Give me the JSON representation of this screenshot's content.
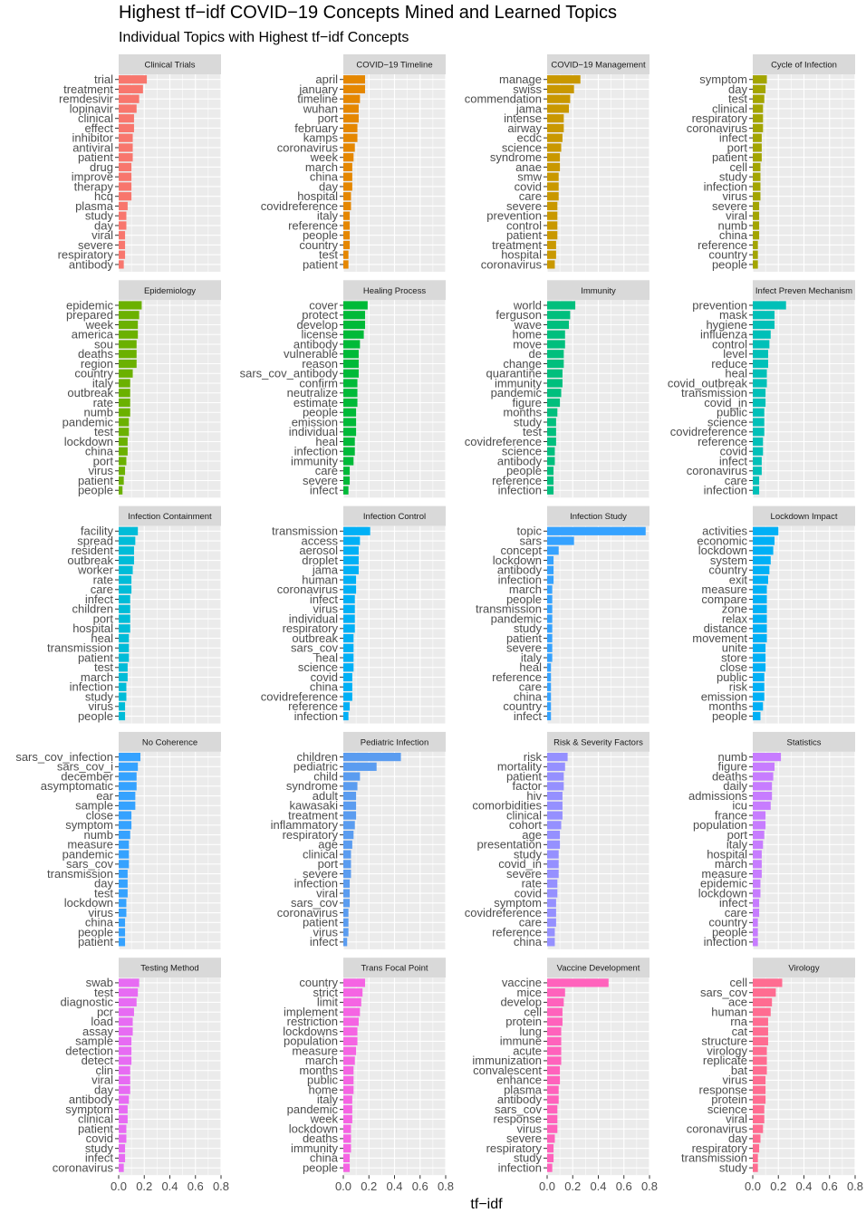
{
  "chart_data": {
    "type": "bar",
    "orientation": "horizontal",
    "title": "Highest tf−idf COVID−19 Concepts Mined and Learned Topics",
    "subtitle": "Individual Topics with Highest tf−idf Concepts",
    "xlabel": "tf−idf",
    "ylabel": "",
    "xlim": [
      0,
      0.8
    ],
    "x_ticks": [
      "0.0",
      "0.2",
      "0.4",
      "0.6",
      "0.8"
    ],
    "grid": true,
    "legend": "none",
    "panel_background": "#ebebeb",
    "strip_background": "#d9d9d9",
    "grid_color": "#ffffff",
    "panels": [
      {
        "name": "Clinical Trials",
        "color": "#F8766D",
        "terms": [
          "trial",
          "treatment",
          "remdesivir",
          "lopinavir",
          "clinical",
          "effect",
          "inhibitor",
          "antiviral",
          "patient",
          "drug",
          "improve",
          "therapy",
          "hcq",
          "plasma",
          "study",
          "day",
          "viral",
          "severe",
          "respiratory",
          "antibody"
        ],
        "values": [
          0.22,
          0.19,
          0.16,
          0.14,
          0.12,
          0.12,
          0.11,
          0.11,
          0.11,
          0.1,
          0.1,
          0.1,
          0.1,
          0.07,
          0.06,
          0.06,
          0.05,
          0.05,
          0.05,
          0.04
        ]
      },
      {
        "name": "COVID−19  Timeline",
        "color": "#E58700",
        "terms": [
          "april",
          "january",
          "timeline",
          "wuhan",
          "port",
          "february",
          "kamps",
          "coronavirus",
          "week",
          "march",
          "china",
          "day",
          "hospital",
          "covidreference",
          "italy",
          "reference",
          "people",
          "country",
          "test",
          "patient"
        ],
        "values": [
          0.17,
          0.17,
          0.13,
          0.12,
          0.12,
          0.11,
          0.11,
          0.09,
          0.08,
          0.07,
          0.07,
          0.07,
          0.06,
          0.06,
          0.05,
          0.05,
          0.05,
          0.05,
          0.04,
          0.04
        ]
      },
      {
        "name": "COVID−19 Management",
        "color": "#C99800",
        "terms": [
          "manage",
          "swiss",
          "commendation",
          "jama",
          "intense",
          "airway",
          "ecdc",
          "science",
          "syndrome",
          "anae",
          "smw",
          "covid",
          "care",
          "severe",
          "prevention",
          "control",
          "patient",
          "treatment",
          "hospital",
          "coronavirus"
        ],
        "values": [
          0.26,
          0.21,
          0.18,
          0.17,
          0.13,
          0.13,
          0.12,
          0.11,
          0.1,
          0.1,
          0.09,
          0.09,
          0.09,
          0.08,
          0.08,
          0.08,
          0.08,
          0.07,
          0.07,
          0.06
        ]
      },
      {
        "name": "Cycle of Infection",
        "color": "#A3A500",
        "terms": [
          "symptom",
          "day",
          "test",
          "clinical",
          "respiratory",
          "coronavirus",
          "infect",
          "port",
          "patient",
          "cell",
          "study",
          "infection",
          "virus",
          "severe",
          "viral",
          "numb",
          "china",
          "reference",
          "country",
          "people"
        ],
        "values": [
          0.11,
          0.1,
          0.09,
          0.08,
          0.08,
          0.08,
          0.07,
          0.07,
          0.07,
          0.06,
          0.06,
          0.06,
          0.06,
          0.05,
          0.05,
          0.05,
          0.05,
          0.04,
          0.04,
          0.04
        ]
      },
      {
        "name": "Epidemiology",
        "color": "#6BB100",
        "terms": [
          "epidemic",
          "prepared",
          "week",
          "america",
          "sou",
          "deaths",
          "region",
          "country",
          "italy",
          "outbreak",
          "rate",
          "numb",
          "pandemic",
          "test",
          "lockdown",
          "china",
          "port",
          "virus",
          "patient",
          "people"
        ],
        "values": [
          0.18,
          0.16,
          0.15,
          0.15,
          0.14,
          0.14,
          0.14,
          0.11,
          0.09,
          0.09,
          0.09,
          0.09,
          0.08,
          0.08,
          0.07,
          0.07,
          0.06,
          0.05,
          0.04,
          0.03
        ]
      },
      {
        "name": "Healing Process",
        "color": "#00BA38",
        "terms": [
          "cover",
          "protect",
          "develop",
          "license",
          "antibody",
          "vulnerable",
          "reason",
          "sars_cov_antibody",
          "confirm",
          "neutralize",
          "estimate",
          "people",
          "emission",
          "individual",
          "heal",
          "infection",
          "immunity",
          "care",
          "severe",
          "infect"
        ],
        "values": [
          0.19,
          0.17,
          0.17,
          0.16,
          0.13,
          0.12,
          0.12,
          0.12,
          0.11,
          0.11,
          0.11,
          0.1,
          0.1,
          0.1,
          0.09,
          0.09,
          0.08,
          0.05,
          0.05,
          0.04
        ]
      },
      {
        "name": "Immunity",
        "color": "#00BF7D",
        "terms": [
          "world",
          "ferguson",
          "wave",
          "home",
          "move",
          "de",
          "change",
          "quarantine",
          "immunity",
          "pandemic",
          "figure",
          "months",
          "study",
          "test",
          "covidreference",
          "science",
          "antibody",
          "people",
          "reference",
          "infection"
        ],
        "values": [
          0.22,
          0.18,
          0.17,
          0.14,
          0.14,
          0.13,
          0.13,
          0.12,
          0.12,
          0.11,
          0.1,
          0.08,
          0.07,
          0.07,
          0.07,
          0.06,
          0.06,
          0.05,
          0.05,
          0.05
        ]
      },
      {
        "name": "Infect Preven Mechanism",
        "color": "#00C0B8",
        "terms": [
          "prevention",
          "mask",
          "hygiene",
          "influenza",
          "control",
          "level",
          "reduce",
          "heal",
          "covid_outbreak",
          "transmission",
          "covid_in",
          "public",
          "science",
          "covidreference",
          "reference",
          "covid",
          "infect",
          "coronavirus",
          "care",
          "infection"
        ],
        "values": [
          0.26,
          0.17,
          0.17,
          0.14,
          0.13,
          0.12,
          0.12,
          0.11,
          0.11,
          0.1,
          0.1,
          0.09,
          0.09,
          0.09,
          0.08,
          0.08,
          0.07,
          0.07,
          0.05,
          0.05
        ]
      },
      {
        "name": "Infection Containment",
        "color": "#00BCD8",
        "terms": [
          "facility",
          "spread",
          "resident",
          "outbreak",
          "worker",
          "rate",
          "care",
          "infect",
          "children",
          "port",
          "hospital",
          "heal",
          "transmission",
          "patient",
          "test",
          "march",
          "infection",
          "study",
          "virus",
          "people"
        ],
        "values": [
          0.15,
          0.13,
          0.12,
          0.12,
          0.11,
          0.1,
          0.1,
          0.09,
          0.09,
          0.09,
          0.09,
          0.08,
          0.08,
          0.08,
          0.07,
          0.07,
          0.06,
          0.06,
          0.05,
          0.05
        ]
      },
      {
        "name": "Infection Control",
        "color": "#00B0F6",
        "terms": [
          "transmission",
          "access",
          "aerosol",
          "droplet",
          "jama",
          "human",
          "coronavirus",
          "infect",
          "virus",
          "individual",
          "respiratory",
          "outbreak",
          "sars_cov",
          "heal",
          "science",
          "covid",
          "china",
          "covidreference",
          "reference",
          "infection"
        ],
        "values": [
          0.21,
          0.13,
          0.12,
          0.12,
          0.12,
          0.1,
          0.1,
          0.09,
          0.09,
          0.09,
          0.09,
          0.08,
          0.08,
          0.08,
          0.08,
          0.07,
          0.07,
          0.07,
          0.05,
          0.04
        ]
      },
      {
        "name": "Infection Study",
        "color": "#35A2FF",
        "terms": [
          "topic",
          "sars",
          "concept",
          "lockdown",
          "antibody",
          "infection",
          "march",
          "people",
          "transmission",
          "pandemic",
          "study",
          "patient",
          "severe",
          "italy",
          "heal",
          "reference",
          "care",
          "china",
          "country",
          "infect"
        ],
        "values": [
          0.77,
          0.21,
          0.09,
          0.05,
          0.05,
          0.05,
          0.04,
          0.04,
          0.04,
          0.04,
          0.04,
          0.04,
          0.04,
          0.04,
          0.03,
          0.03,
          0.03,
          0.03,
          0.03,
          0.03
        ]
      },
      {
        "name": "Lockdown Impact",
        "color": "#00B0F6",
        "terms": [
          "activities",
          "economic",
          "lockdown",
          "system",
          "country",
          "exit",
          "measure",
          "compare",
          "zone",
          "relax",
          "distance",
          "movement",
          "unite",
          "store",
          "close",
          "public",
          "risk",
          "emission",
          "months",
          "people"
        ],
        "values": [
          0.2,
          0.17,
          0.16,
          0.14,
          0.13,
          0.12,
          0.11,
          0.11,
          0.11,
          0.11,
          0.11,
          0.11,
          0.1,
          0.1,
          0.1,
          0.09,
          0.09,
          0.09,
          0.08,
          0.06
        ]
      },
      {
        "name": "No Coherence",
        "color": "#35A2FF",
        "terms": [
          "sars_cov_infection",
          "sars_cov_i",
          "december",
          "asymptomatic",
          "ear",
          "sample",
          "close",
          "symptom",
          "numb",
          "measure",
          "pandemic",
          "sars_cov",
          "transmission",
          "day",
          "test",
          "lockdown",
          "virus",
          "china",
          "people",
          "patient"
        ],
        "values": [
          0.17,
          0.15,
          0.14,
          0.14,
          0.13,
          0.13,
          0.1,
          0.1,
          0.09,
          0.08,
          0.08,
          0.08,
          0.07,
          0.07,
          0.07,
          0.06,
          0.06,
          0.05,
          0.05,
          0.05
        ]
      },
      {
        "name": "Pediatric Infection",
        "color": "#5A9CF0",
        "terms": [
          "children",
          "pediatric",
          "child",
          "syndrome",
          "adult",
          "kawasaki",
          "treatment",
          "inflammatory",
          "respiratory",
          "age",
          "clinical",
          "port",
          "severe",
          "infection",
          "viral",
          "sars_cov",
          "coronavirus",
          "patient",
          "virus",
          "infect"
        ],
        "values": [
          0.45,
          0.26,
          0.13,
          0.11,
          0.1,
          0.1,
          0.1,
          0.09,
          0.08,
          0.07,
          0.06,
          0.06,
          0.06,
          0.05,
          0.05,
          0.05,
          0.04,
          0.04,
          0.04,
          0.03
        ]
      },
      {
        "name": "Risk & Severity Factors",
        "color": "#9590FF",
        "terms": [
          "risk",
          "mortality",
          "patient",
          "factor",
          "hiv",
          "comorbidities",
          "clinical",
          "cohort",
          "age",
          "presentation",
          "study",
          "covid_in",
          "severe",
          "rate",
          "covid",
          "symptom",
          "covidreference",
          "care",
          "reference",
          "china"
        ],
        "values": [
          0.16,
          0.14,
          0.13,
          0.13,
          0.12,
          0.12,
          0.12,
          0.11,
          0.1,
          0.1,
          0.09,
          0.09,
          0.09,
          0.08,
          0.08,
          0.07,
          0.07,
          0.07,
          0.06,
          0.06
        ]
      },
      {
        "name": "Statistics",
        "color": "#C77CFF",
        "terms": [
          "numb",
          "figure",
          "deaths",
          "daily",
          "admissions",
          "icu",
          "france",
          "population",
          "port",
          "italy",
          "hospital",
          "march",
          "measure",
          "epidemic",
          "lockdown",
          "infect",
          "care",
          "country",
          "people",
          "infection"
        ],
        "values": [
          0.22,
          0.17,
          0.16,
          0.15,
          0.15,
          0.14,
          0.1,
          0.1,
          0.09,
          0.08,
          0.07,
          0.07,
          0.07,
          0.06,
          0.06,
          0.05,
          0.05,
          0.04,
          0.04,
          0.04
        ]
      },
      {
        "name": "Testing Method",
        "color": "#E76BF3",
        "terms": [
          "swab",
          "test",
          "diagnostic",
          "pcr",
          "load",
          "assay",
          "sample",
          "detection",
          "detect",
          "clin",
          "viral",
          "day",
          "antibody",
          "symptom",
          "clinical",
          "patient",
          "covid",
          "study",
          "infect",
          "coronavirus"
        ],
        "values": [
          0.16,
          0.15,
          0.14,
          0.12,
          0.11,
          0.11,
          0.1,
          0.1,
          0.1,
          0.09,
          0.09,
          0.09,
          0.08,
          0.07,
          0.07,
          0.06,
          0.06,
          0.05,
          0.05,
          0.04
        ]
      },
      {
        "name": "Trans Focal Point",
        "color": "#F564E3",
        "terms": [
          "country",
          "strict",
          "limit",
          "implement",
          "restriction",
          "lockdowns",
          "population",
          "measure",
          "march",
          "months",
          "public",
          "home",
          "italy",
          "pandemic",
          "week",
          "lockdown",
          "deaths",
          "immunity",
          "china",
          "people"
        ],
        "values": [
          0.17,
          0.15,
          0.14,
          0.13,
          0.12,
          0.11,
          0.11,
          0.1,
          0.09,
          0.08,
          0.08,
          0.08,
          0.07,
          0.07,
          0.07,
          0.06,
          0.06,
          0.06,
          0.05,
          0.05
        ]
      },
      {
        "name": "Vaccine Development",
        "color": "#FF62BC",
        "terms": [
          "vaccine",
          "mice",
          "develop",
          "cell",
          "protein",
          "lung",
          "immune",
          "acute",
          "immunization",
          "convalescent",
          "enhance",
          "plasma",
          "antibody",
          "sars_cov",
          "response",
          "virus",
          "severe",
          "respiratory",
          "study",
          "infection"
        ],
        "values": [
          0.48,
          0.14,
          0.13,
          0.12,
          0.12,
          0.11,
          0.11,
          0.11,
          0.11,
          0.1,
          0.1,
          0.09,
          0.09,
          0.08,
          0.08,
          0.08,
          0.06,
          0.05,
          0.05,
          0.04
        ]
      },
      {
        "name": "Virology",
        "color": "#FF6C91",
        "terms": [
          "cell",
          "sars_cov",
          "ace",
          "human",
          "rna",
          "cat",
          "structure",
          "virology",
          "replicate",
          "bat",
          "virus",
          "response",
          "protein",
          "science",
          "viral",
          "coronavirus",
          "day",
          "respiratory",
          "transmission",
          "study"
        ],
        "values": [
          0.23,
          0.18,
          0.15,
          0.14,
          0.12,
          0.12,
          0.12,
          0.11,
          0.11,
          0.11,
          0.1,
          0.1,
          0.1,
          0.09,
          0.09,
          0.08,
          0.06,
          0.05,
          0.04,
          0.04
        ]
      }
    ]
  }
}
